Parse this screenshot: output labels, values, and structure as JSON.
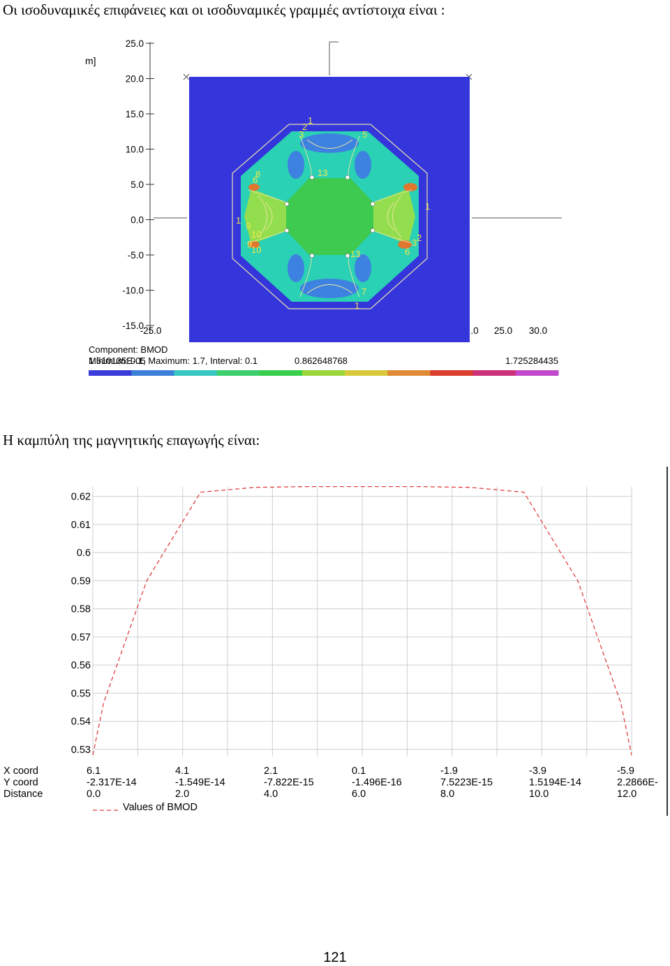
{
  "text": {
    "paragraph1": "Οι  ισοδυναμικές επιφάνειες  και οι ισοδυναμικές γραμμές αντίστοιχα είναι :",
    "paragraph2": "Η καμπύλη της μαγνητικής επαγωγής είναι:",
    "page_number": "121"
  },
  "field_plot": {
    "unit_label": "m]",
    "y_ticks": [
      "25.0",
      "20.0",
      "15.0",
      "10.0",
      "5.0",
      "0.0",
      "-5.0",
      "-10.0",
      "-15.0"
    ],
    "x_ticks_left": [
      "-25.0"
    ],
    "x_ticks_right": [
      ".0",
      "25.0",
      "30.0"
    ],
    "component_label": "Component: BMOD",
    "range_text": "Minimum: 0.1,  Maximum: 1.7,  Interval: 0.1",
    "overlap_text": "1.510135E-05",
    "mid_value": "0.862648768",
    "max_value": "1.725284435",
    "colorbar": [
      "#3a3bd9",
      "#3b7fd8",
      "#37c7c1",
      "#3bcf6e",
      "#37cf4b",
      "#9ad63a",
      "#d9c83a",
      "#e08a35",
      "#dd3d2e",
      "#cc3078",
      "#c248cc"
    ],
    "contour_labels": [
      "1",
      "2",
      "3",
      "5",
      "6",
      "8",
      "9",
      "10",
      "13",
      "1",
      "9",
      "10",
      "2",
      "3",
      "13",
      "1",
      "6",
      "7",
      "1"
    ],
    "colors": {
      "background": "#3535dc",
      "core": "#3ec94f",
      "stator": "#2ad1b4",
      "slot": "#3d82e0"
    }
  },
  "chart_data": {
    "type": "line",
    "title": "",
    "xlabel": "",
    "ylabel": "",
    "y_ticks": [
      "0.62",
      "0.61",
      "0.6",
      "0.59",
      "0.58",
      "0.57",
      "0.56",
      "0.55",
      "0.54",
      "0.53"
    ],
    "ylim": [
      0.5275,
      0.6234
    ],
    "xlim": [
      0.0,
      12.0
    ],
    "row_labels": [
      "X coord",
      "Y coord",
      "Distance"
    ],
    "columns": [
      {
        "x": "6.1",
        "y": "-2.317E-14",
        "d": "0.0"
      },
      {
        "x": "4.1",
        "y": "-1.549E-14",
        "d": "2.0"
      },
      {
        "x": "2.1",
        "y": "-7.822E-15",
        "d": "4.0"
      },
      {
        "x": "0.1",
        "y": "-1.496E-16",
        "d": "6.0"
      },
      {
        "x": "-1.9",
        "y": "7.5223E-15",
        "d": "8.0"
      },
      {
        "x": "-3.9",
        "y": "1.5194E-14",
        "d": "10.0"
      },
      {
        "x": "-5.9",
        "y": "2.2866E-",
        "d": "12.0"
      }
    ],
    "series": [
      {
        "name": "Values of BMOD",
        "color": "#e04040",
        "x": [
          0.0,
          0.24,
          1.2,
          2.4,
          3.6,
          4.8,
          6.0,
          7.2,
          8.4,
          9.6,
          10.8,
          11.76,
          12.0
        ],
        "y": [
          0.528,
          0.5465,
          0.59,
          0.6215,
          0.6232,
          0.6235,
          0.6235,
          0.6235,
          0.6232,
          0.6215,
          0.59,
          0.5465,
          0.528
        ]
      }
    ]
  }
}
